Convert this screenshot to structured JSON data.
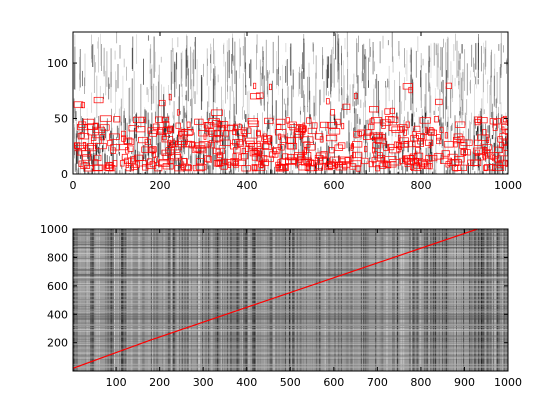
{
  "colors": {
    "background": "#ffffff",
    "axes_frame": "#000000",
    "texture_dark": "#1a1a1a",
    "overlay": "#ff0000"
  },
  "chart_data": [
    {
      "type": "heatmap",
      "description_role": "spectrogram-like piano roll with red note rectangles",
      "xlim": [
        0,
        1000
      ],
      "ylim": [
        0,
        128
      ],
      "xticks": [
        0,
        200,
        400,
        600,
        800,
        1000
      ],
      "yticks": [
        0,
        50,
        100
      ],
      "grid": false,
      "overlay": {
        "type": "rectangles",
        "color": "#ff0000",
        "pitch_range": [
          5,
          80
        ]
      }
    },
    {
      "type": "heatmap",
      "description_role": "similarity / alignment matrix with red alignment path",
      "xlim": [
        1,
        1000
      ],
      "ylim": [
        1,
        1000
      ],
      "xticks": [
        100,
        200,
        300,
        400,
        500,
        600,
        700,
        800,
        900,
        1000
      ],
      "yticks": [
        200,
        400,
        600,
        800,
        1000
      ],
      "grid": false,
      "overlay": {
        "type": "line",
        "color": "#ff0000",
        "points": [
          [
            1,
            20
          ],
          [
            180,
            220
          ],
          [
            930,
            1000
          ]
        ]
      }
    }
  ]
}
